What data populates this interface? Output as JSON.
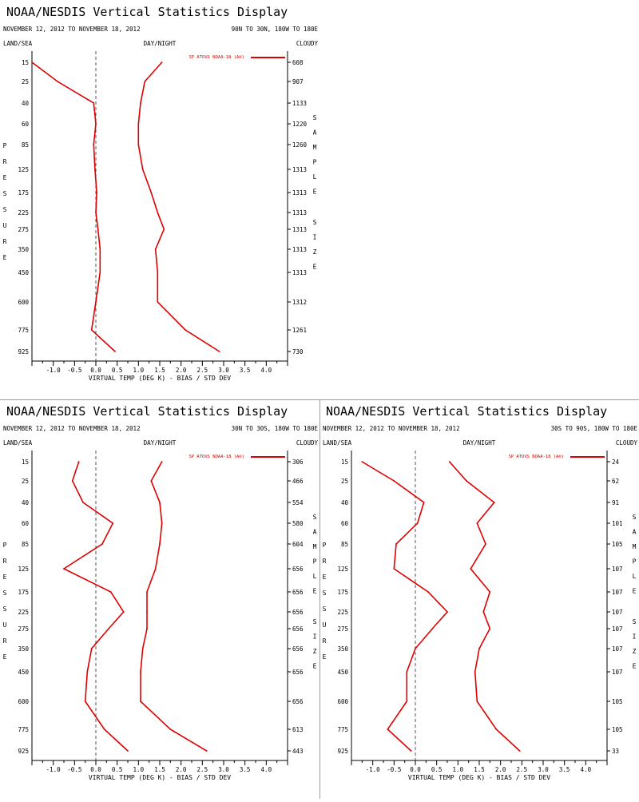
{
  "colors": {
    "series": "#dd0000",
    "axis": "#000000",
    "zero_line": "#555555",
    "divider": "#9a9a9a"
  },
  "common": {
    "title": "NOAA/NESDIS Vertical Statistics Display",
    "date_range": "NOVEMBER 12, 2012 TO NOVEMBER 18, 2012",
    "land_sea": "LAND/SEA",
    "day_night": "DAY/NIGHT",
    "cloudy": "CLOUDY",
    "xlabel": "VIRTUAL TEMP (DEG K) - BIAS / STD DEV",
    "legend": "SP ATOVS NOAA-18 (A®)",
    "left_vertical": "PRESSURE",
    "right_vertical": "SAMPLE SIZE"
  },
  "chart_data": [
    {
      "type": "line",
      "region": "90N TO 30N, 180W TO 180E",
      "pressure_levels": [
        "15",
        "25",
        "40",
        "60",
        "85",
        "125",
        "175",
        "225",
        "275",
        "350",
        "450",
        "600",
        "775",
        "925"
      ],
      "xticks": [
        "-1.0",
        "-0.5",
        "0.0",
        "0.5",
        "1.0",
        "1.5",
        "2.0",
        "2.5",
        "3.0",
        "3.5",
        "4.0"
      ],
      "xlim": [
        -1.5,
        4.5
      ],
      "sample_size": [
        "608",
        "907",
        "1133",
        "1220",
        "1260",
        "1313",
        "1313",
        "1313",
        "1313",
        "1313",
        "1313",
        "1312",
        "1261",
        "730"
      ],
      "series": [
        {
          "name": "bias",
          "values": [
            -1.5,
            -0.9,
            -0.05,
            0.0,
            -0.05,
            -0.02,
            0.02,
            0.0,
            0.05,
            0.1,
            0.1,
            0.0,
            -0.1,
            0.45
          ]
        },
        {
          "name": "std_dev",
          "values": [
            1.55,
            1.15,
            1.05,
            1.0,
            1.0,
            1.1,
            1.3,
            1.45,
            1.6,
            1.4,
            1.45,
            1.45,
            2.1,
            2.9
          ]
        }
      ]
    },
    {
      "type": "line",
      "region": "30N TO 30S, 180W TO 180E",
      "pressure_levels": [
        "15",
        "25",
        "40",
        "60",
        "85",
        "125",
        "175",
        "225",
        "275",
        "350",
        "450",
        "600",
        "775",
        "925"
      ],
      "xticks": [
        "-1.0",
        "-0.5",
        "0.0",
        "0.5",
        "1.0",
        "1.5",
        "2.0",
        "2.5",
        "3.0",
        "3.5",
        "4.0"
      ],
      "xlim": [
        -1.5,
        4.5
      ],
      "sample_size": [
        "306",
        "466",
        "554",
        "580",
        "604",
        "656",
        "656",
        "656",
        "656",
        "656",
        "656",
        "656",
        "613",
        "443"
      ],
      "series": [
        {
          "name": "bias",
          "values": [
            -0.4,
            -0.55,
            -0.3,
            0.4,
            0.15,
            -0.75,
            0.35,
            0.65,
            0.3,
            -0.1,
            -0.2,
            -0.25,
            0.2,
            0.75
          ]
        },
        {
          "name": "std_dev",
          "values": [
            1.55,
            1.3,
            1.5,
            1.55,
            1.5,
            1.4,
            1.2,
            1.2,
            1.2,
            1.1,
            1.05,
            1.05,
            1.75,
            2.6
          ]
        }
      ]
    },
    {
      "type": "line",
      "region": "30S TO 90S, 180W TO 180E",
      "pressure_levels": [
        "15",
        "25",
        "40",
        "60",
        "85",
        "125",
        "175",
        "225",
        "275",
        "350",
        "450",
        "600",
        "775",
        "925"
      ],
      "xticks": [
        "-1.0",
        "-0.5",
        "0.0",
        "0.5",
        "1.0",
        "1.5",
        "2.0",
        "2.5",
        "3.0",
        "3.5",
        "4.0"
      ],
      "xlim": [
        -1.5,
        4.5
      ],
      "sample_size": [
        "24",
        "62",
        "91",
        "101",
        "105",
        "107",
        "107",
        "107",
        "107",
        "107",
        "107",
        "105",
        "105",
        "33"
      ],
      "series": [
        {
          "name": "bias",
          "values": [
            -1.25,
            -0.5,
            0.2,
            0.05,
            -0.45,
            -0.5,
            0.3,
            0.75,
            0.4,
            0.0,
            -0.2,
            -0.2,
            -0.65,
            -0.1
          ]
        },
        {
          "name": "std_dev",
          "values": [
            0.8,
            1.2,
            1.85,
            1.45,
            1.65,
            1.3,
            1.75,
            1.6,
            1.75,
            1.5,
            1.4,
            1.45,
            1.9,
            2.45
          ]
        }
      ]
    }
  ]
}
